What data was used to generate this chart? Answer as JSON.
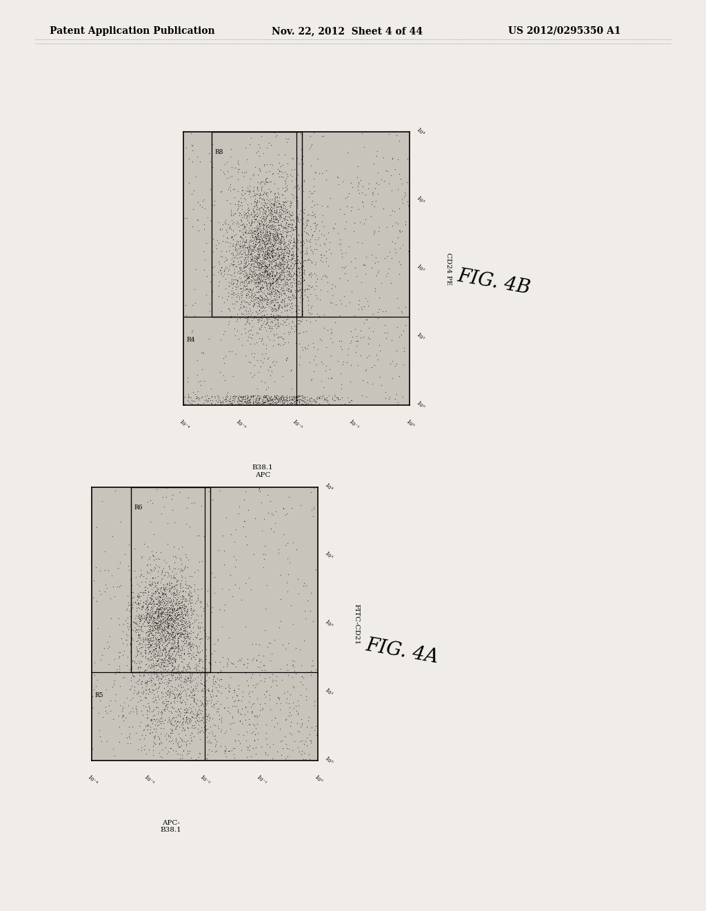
{
  "background_color": "#f0ede8",
  "plot_bg": "#c8c4bc",
  "header_text": "Patent Application Publication",
  "header_date": "Nov. 22, 2012  Sheet 4 of 44",
  "header_patent": "US 2012/0295350 A1",
  "fig4b": {
    "label": "FIG. 4B",
    "xlabel": "B38.1\nAPC",
    "ylabel": "CD24 PE",
    "gate_r8": "R8",
    "gate_r4": "R4",
    "x_ticks": [
      "10⁻⁴",
      "10⁻³",
      "10⁻²",
      "10⁻¹",
      "10⁰"
    ],
    "y_ticks": [
      "10⁰",
      "10¹",
      "10²",
      "10³",
      "10⁴"
    ]
  },
  "fig4a": {
    "label": "FIG. 4A",
    "xlabel": "APC-\nB38.1",
    "ylabel": "FITC-CD21",
    "gate_r6": "R6",
    "gate_r5": "R5",
    "x_ticks": [
      "10⁻⁴",
      "10⁻³",
      "10⁻²",
      "10⁻¹",
      "10⁰"
    ],
    "y_ticks": [
      "10⁰",
      "10¹",
      "10²",
      "10³",
      "10⁴"
    ]
  }
}
